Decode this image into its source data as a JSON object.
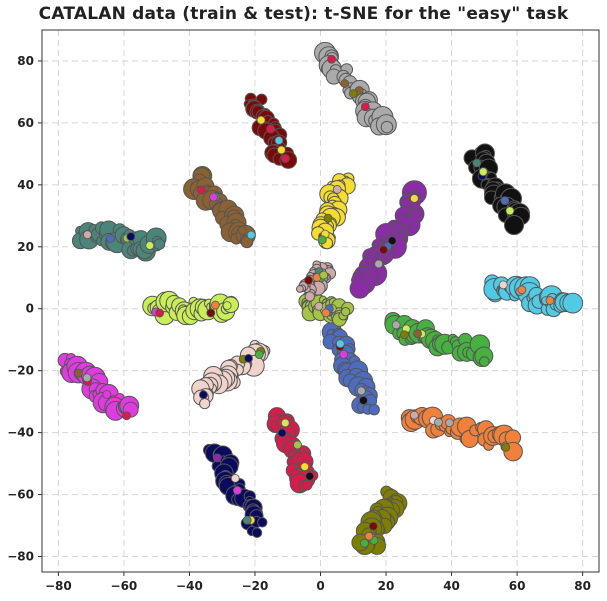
{
  "chart_data": {
    "type": "scatter",
    "title": "CATALAN data (train & test): t-SNE for the \"easy\" task",
    "xlabel": "",
    "ylabel": "",
    "xlim": [
      -85,
      85
    ],
    "ylim": [
      -85,
      90
    ],
    "grid": true,
    "x_ticks": [
      -80,
      -60,
      -40,
      -20,
      0,
      20,
      40,
      60,
      80
    ],
    "y_ticks": [
      -80,
      -60,
      -40,
      -20,
      0,
      20,
      40,
      60,
      80
    ],
    "x_tick_labels": [
      "−80",
      "−60",
      "−40",
      "−20",
      "0",
      "20",
      "40",
      "60",
      "80"
    ],
    "y_tick_labels": [
      "−80",
      "−60",
      "−40",
      "−20",
      "0",
      "20",
      "40",
      "60",
      "80"
    ],
    "clusters": [
      {
        "color": "#aaaaaa",
        "x0": 1,
        "y0": 82,
        "x1": 20,
        "y1": 58,
        "size": 20
      },
      {
        "color": "#7a0a0a",
        "x0": -20,
        "y0": 68,
        "x1": -11,
        "y1": 48,
        "size": 16
      },
      {
        "color": "#111111",
        "x0": 47,
        "y0": 50,
        "x1": 60,
        "y1": 28,
        "size": 20
      },
      {
        "color": "#f4dd2e",
        "x0": 7,
        "y0": 42,
        "x1": 0,
        "y1": 22,
        "size": 18
      },
      {
        "color": "#8a2ca6",
        "x0": 30,
        "y0": 36,
        "x1": 12,
        "y1": 7,
        "size": 24
      },
      {
        "color": "#4a857a",
        "x0": -73,
        "y0": 25,
        "x1": -49,
        "y1": 20,
        "size": 20
      },
      {
        "color": "#8c6132",
        "x0": -38,
        "y0": 42,
        "x1": -22,
        "y1": 22,
        "size": 20
      },
      {
        "color": "#c9ee57",
        "x0": -52,
        "y0": 0,
        "x1": -27,
        "y1": 0,
        "size": 20
      },
      {
        "color": "#51cbe5",
        "x0": 52,
        "y0": 8,
        "x1": 76,
        "y1": 0,
        "size": 22
      },
      {
        "color": "#46b040",
        "x0": 21,
        "y0": -6,
        "x1": 51,
        "y1": -15,
        "size": 20
      },
      {
        "color": "#e03be0",
        "x0": -78,
        "y0": -17,
        "x1": -59,
        "y1": -34,
        "size": 20
      },
      {
        "color": "#f0d3cb",
        "x0": -18,
        "y0": -13,
        "x1": -37,
        "y1": -29,
        "size": 20
      },
      {
        "color": "#4d6cbf",
        "x0": 4,
        "y0": -7,
        "x1": 15,
        "y1": -33,
        "size": 20
      },
      {
        "color": "#d81b4a",
        "x0": -13,
        "y0": -35,
        "x1": -3,
        "y1": -57,
        "size": 18
      },
      {
        "color": "#f0803a",
        "x0": 27,
        "y0": -35,
        "x1": 59,
        "y1": -44,
        "size": 20
      },
      {
        "color": "#0b0b5e",
        "x0": -32,
        "y0": -45,
        "x1": -19,
        "y1": -72,
        "size": 18
      },
      {
        "color": "#7e7e00",
        "x0": 22,
        "y0": -60,
        "x1": 14,
        "y1": -77,
        "size": 20
      },
      {
        "color": "#a3c543",
        "x0": -5,
        "y0": 2,
        "x1": 8,
        "y1": -2,
        "size": 16
      },
      {
        "color": "#d0aaaa",
        "x0": 2,
        "y0": 13,
        "x1": -5,
        "y1": 5,
        "size": 14
      }
    ]
  }
}
